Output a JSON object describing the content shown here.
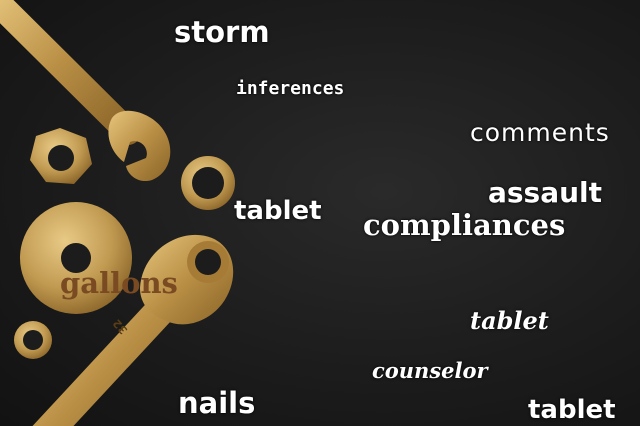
{
  "words": {
    "storm": "storm",
    "inferences": "inferences",
    "comments": "comments",
    "assault": "assault",
    "tablet_1": "tablet",
    "compliances": "compliances",
    "gallons": "gallons",
    "tablet_2": "tablet",
    "counselor": "counselor",
    "nails": "nails",
    "tablet_3": "tablet"
  },
  "wrench_engraving": "32",
  "colors": {
    "background": "#1c1c1c",
    "brass": "#c9a35a",
    "word": "#ffffff",
    "gallons_word": "#7a4a22"
  }
}
